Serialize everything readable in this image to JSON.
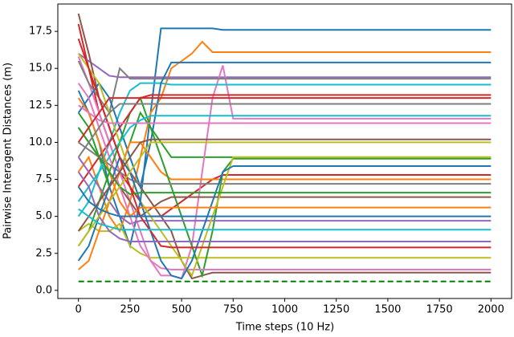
{
  "chart_data": {
    "type": "line",
    "xlabel": "Time steps (10 Hz)",
    "ylabel": "Pairwise Interagent Distances (m)",
    "xlim": [
      -100,
      2100
    ],
    "ylim": [
      -0.55,
      19.35
    ],
    "xticks": [
      0,
      250,
      500,
      750,
      1000,
      1250,
      1500,
      1750,
      2000
    ],
    "yticks": [
      {
        "value": 0,
        "label": "0.0"
      },
      2.5,
      {
        "value": 5,
        "label": "5.0"
      },
      7.5,
      {
        "value": 10,
        "label": "10.0"
      },
      12.5,
      {
        "value": 15,
        "label": "15.0"
      },
      17.5
    ],
    "x": [
      0,
      50,
      100,
      150,
      200,
      250,
      300,
      350,
      400,
      450,
      500,
      550,
      600,
      650,
      700,
      750,
      2000
    ],
    "series": [
      {
        "color": "#1f77b4",
        "values": [
          13.5,
          12,
          10,
          7,
          5,
          3,
          6,
          12,
          17.7,
          17.7,
          17.7,
          17.7,
          17.7,
          17.7,
          17.6,
          17.6,
          17.6
        ]
      },
      {
        "color": "#ff7f0e",
        "values": [
          8,
          9,
          7,
          5,
          4,
          6,
          9,
          12,
          13,
          15,
          15.5,
          16,
          16.8,
          16.1,
          16.1,
          16.1,
          16.1
        ]
      },
      {
        "color": "#2ca02c",
        "values": [
          12,
          11,
          9,
          7,
          8,
          10,
          12,
          11,
          10,
          9,
          9,
          9,
          9,
          9,
          9,
          9,
          9
        ]
      },
      {
        "color": "#d62728",
        "values": [
          18,
          15,
          12,
          10,
          8,
          7,
          6,
          5,
          5,
          5.5,
          6,
          6.5,
          7,
          7.5,
          7.8,
          7.8,
          7.8
        ]
      },
      {
        "color": "#9467bd",
        "values": [
          16,
          15.5,
          15,
          14.5,
          14.4,
          14.4,
          14.4,
          14.4,
          14.4,
          14.4,
          14.4,
          14.4,
          14.4,
          14.4,
          14.4,
          14.4,
          14.4
        ]
      },
      {
        "color": "#8c564b",
        "values": [
          18.7,
          16,
          13,
          11,
          9,
          8,
          7,
          6,
          5,
          4,
          2,
          0.8,
          1,
          1.2,
          1.2,
          1.2,
          1.2
        ]
      },
      {
        "color": "#e377c2",
        "values": [
          15.8,
          14,
          12,
          10,
          8,
          6,
          4,
          2,
          1,
          1,
          0.8,
          3,
          8,
          13,
          15.2,
          11.6,
          11.6
        ]
      },
      {
        "color": "#7f7f7f",
        "values": [
          15.5,
          14,
          13,
          12,
          15,
          14.3,
          14.3,
          14.3,
          14.3,
          14.3,
          14.3,
          14.3,
          14.3,
          14.3,
          14.3,
          14.3,
          14.3
        ]
      },
      {
        "color": "#bcbd22",
        "values": [
          4,
          4.5,
          4,
          4,
          4.5,
          3,
          2.5,
          2.2,
          2.2,
          2.2,
          2.2,
          2.2,
          2.2,
          2.2,
          2.2,
          2.2,
          2.2
        ]
      },
      {
        "color": "#17becf",
        "values": [
          5,
          6,
          8,
          10,
          12,
          13.5,
          14,
          14,
          14,
          13.9,
          13.9,
          13.9,
          13.9,
          13.9,
          13.9,
          13.9,
          13.9
        ]
      },
      {
        "color": "#1f77b4",
        "values": [
          12,
          13,
          14,
          13,
          11,
          9,
          7,
          10,
          14,
          15.4,
          15.4,
          15.4,
          15.4,
          15.4,
          15.4,
          15.4,
          15.4
        ]
      },
      {
        "color": "#ff7f0e",
        "values": [
          1.4,
          2,
          4,
          6,
          8,
          10,
          10,
          9,
          8,
          7.5,
          7.5,
          7.5,
          7.5,
          7.5,
          7.5,
          7.5,
          7.5
        ]
      },
      {
        "color": "#2ca02c",
        "values": [
          3,
          4,
          6,
          8,
          10,
          12,
          13,
          11,
          9,
          7,
          5,
          3,
          1,
          4,
          8,
          8.9,
          8.9
        ]
      },
      {
        "color": "#d62728",
        "values": [
          7,
          8,
          9,
          10,
          11,
          12,
          13,
          13.2,
          13.2,
          13.2,
          13.2,
          13.2,
          13.2,
          13.2,
          13.2,
          13.2,
          13.2
        ]
      },
      {
        "color": "#9467bd",
        "values": [
          9,
          8,
          7,
          6,
          5,
          4.5,
          4.7,
          4.7,
          4.7,
          4.7,
          4.7,
          4.7,
          4.7,
          4.7,
          4.7,
          4.7,
          4.7
        ]
      },
      {
        "color": "#8c564b",
        "values": [
          11,
          10,
          9,
          8,
          7,
          6,
          5,
          5.5,
          6,
          6.3,
          6.3,
          6.3,
          6.3,
          6.3,
          6.3,
          6.3,
          6.3
        ]
      },
      {
        "color": "#e377c2",
        "values": [
          14,
          13,
          11,
          9,
          7,
          5,
          3,
          2,
          1.5,
          1.4,
          1.4,
          1.4,
          1.4,
          1.4,
          1.4,
          1.4,
          1.4
        ]
      },
      {
        "color": "#7f7f7f",
        "values": [
          10,
          9.5,
          9,
          8.5,
          8,
          7.5,
          7.2,
          7.2,
          7.2,
          7.2,
          7.2,
          7.2,
          7.2,
          7.2,
          7.2,
          7.2,
          7.2
        ]
      },
      {
        "color": "#bcbd22",
        "values": [
          16,
          15,
          14,
          12,
          10,
          8,
          6,
          5,
          4,
          3,
          2,
          1,
          3,
          5,
          7,
          9,
          9
        ]
      },
      {
        "color": "#17becf",
        "values": [
          6,
          7,
          8,
          9,
          10,
          11,
          11.5,
          11.8,
          11.8,
          11.8,
          11.8,
          11.8,
          11.8,
          11.8,
          11.8,
          11.8,
          11.8
        ]
      },
      {
        "color": "#1f77b4",
        "values": [
          2,
          3,
          5,
          7,
          9,
          8,
          6,
          4,
          2,
          1,
          0.8,
          2,
          4,
          6,
          8,
          8.4,
          8.4
        ]
      },
      {
        "color": "#ff7f0e",
        "values": [
          13,
          12,
          10,
          8,
          6,
          5,
          5.6,
          5.6,
          5.6,
          5.6,
          5.6,
          5.6,
          5.6,
          5.6,
          5.6,
          5.6,
          5.6
        ]
      },
      {
        "color": "#2ca02c",
        "values": [
          11,
          10,
          9,
          8,
          7,
          6.5,
          6.6,
          6.6,
          6.6,
          6.6,
          6.6,
          6.6,
          6.6,
          6.6,
          6.6,
          6.6,
          6.6
        ]
      },
      {
        "color": "#d62728",
        "values": [
          17,
          15,
          13,
          11,
          9,
          7,
          5,
          4,
          3,
          2.9,
          2.9,
          2.9,
          2.9,
          2.9,
          2.9,
          2.9,
          2.9
        ]
      },
      {
        "color": "#9467bd",
        "values": [
          8,
          7,
          5,
          4,
          3.5,
          3.3,
          3.3,
          3.3,
          3.3,
          3.3,
          3.3,
          3.3,
          3.3,
          3.3,
          3.3,
          3.3,
          3.3
        ]
      },
      {
        "color": "#8c564b",
        "values": [
          4,
          5,
          6,
          7,
          8,
          9,
          10,
          10.2,
          10.2,
          10.2,
          10.2,
          10.2,
          10.2,
          10.2,
          10.2,
          10.2,
          10.2
        ]
      },
      {
        "color": "#e377c2",
        "values": [
          12.5,
          12,
          11.5,
          11.3,
          11.3,
          11.3,
          11.3,
          11.3,
          11.3,
          11.3,
          11.3,
          11.3,
          11.3,
          11.3,
          11.3,
          11.3,
          11.3
        ]
      },
      {
        "color": "#7f7f7f",
        "values": [
          9,
          10,
          11,
          12,
          12.6,
          12.6,
          12.6,
          12.6,
          12.6,
          12.6,
          12.6,
          12.6,
          12.6,
          12.6,
          12.6,
          12.6,
          12.6
        ]
      },
      {
        "color": "#bcbd22",
        "values": [
          3,
          4,
          5,
          6,
          7,
          8,
          9,
          10,
          10,
          10,
          10,
          10,
          10,
          10,
          10,
          10,
          10
        ]
      },
      {
        "color": "#17becf",
        "values": [
          5.5,
          5,
          4.5,
          4.3,
          4.1,
          4.1,
          4.1,
          4.1,
          4.1,
          4.1,
          4.1,
          4.1,
          4.1,
          4.1,
          4.1,
          4.1,
          4.1
        ]
      },
      {
        "color": "#d62728",
        "values": [
          10,
          11,
          12,
          13,
          13,
          13,
          13,
          13,
          13,
          13,
          13,
          13,
          13,
          13,
          13,
          13,
          13
        ]
      },
      {
        "color": "#1f77b4",
        "values": [
          7,
          6,
          5.5,
          5.2,
          5,
          5,
          5,
          5,
          5,
          5,
          5,
          5,
          5,
          5,
          5,
          5,
          5
        ]
      },
      {
        "color": "#008000",
        "dashed": true,
        "values": [
          0.6,
          0.6,
          0.6,
          0.6,
          0.6,
          0.6,
          0.6,
          0.6,
          0.6,
          0.6,
          0.6,
          0.6,
          0.6,
          0.6,
          0.6,
          0.6,
          0.6
        ]
      }
    ]
  }
}
